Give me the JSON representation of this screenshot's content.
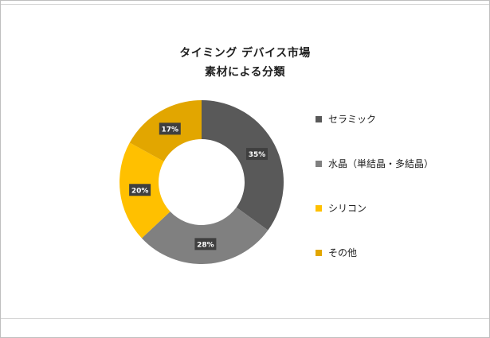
{
  "chart_data": {
    "type": "pie",
    "subtype": "donut",
    "title": "タイミング デバイス市場",
    "subtitle": "素材による分類",
    "categories": [
      "セラミック",
      "水晶（単結晶・多結晶）",
      "シリコン",
      "その他"
    ],
    "values": [
      35,
      28,
      20,
      17
    ],
    "data_labels": [
      "35%",
      "28%",
      "20%",
      "17%"
    ],
    "colors": [
      "#595959",
      "#808080",
      "#FFC000",
      "#E2A600"
    ],
    "label_bg": "#3f3f3f",
    "label_text_color": "#ffffff",
    "legend_position": "right",
    "start_angle": 0,
    "direction": "clockwise"
  }
}
